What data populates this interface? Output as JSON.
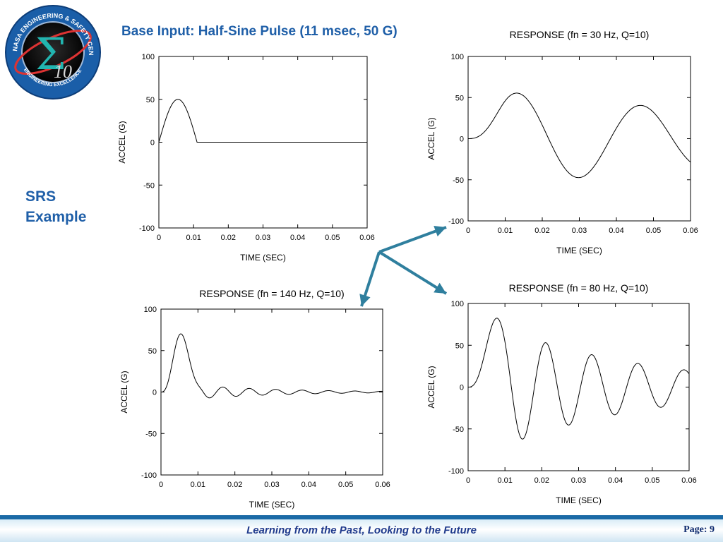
{
  "logo": {
    "ring_top": "NASA ENGINEERING & SAFETY CENTER",
    "ring_bottom": "ENGINEERING EXCELLENCE",
    "mark": "10",
    "symbol": "Σ"
  },
  "slide": {
    "title": "Base Input:  Half-Sine Pulse (11 msec, 50 G)",
    "side_label_line1": "SRS",
    "side_label_line2": "Example",
    "footer": "Learning from the Past, Looking to the Future",
    "page": "Page: 9"
  },
  "colors": {
    "title": "#1f5fa8",
    "arrow": "#2f7f9e",
    "footer_band": "#1b6aa6"
  },
  "chart_data": [
    {
      "type": "line",
      "id": "input",
      "title": "",
      "xlabel": "TIME (SEC)",
      "ylabel": "ACCEL (G)",
      "xlim": [
        0,
        0.06
      ],
      "ylim": [
        -100,
        100
      ],
      "xticks": [
        "0",
        "0.01",
        "0.02",
        "0.03",
        "0.04",
        "0.05",
        "0.06"
      ],
      "yticks": [
        "100",
        "50",
        "0",
        "-50",
        "-100"
      ],
      "series": [
        {
          "pulse_duration": 0.011,
          "peak": 50,
          "x": [
            0,
            0.0055,
            0.011,
            0.06
          ],
          "y": [
            0,
            50,
            0,
            0
          ]
        }
      ]
    },
    {
      "type": "line",
      "id": "fn30",
      "title": "RESPONSE  (fn = 30 Hz, Q=10)",
      "xlabel": "TIME (SEC)",
      "ylabel": "ACCEL (G)",
      "xlim": [
        0,
        0.06
      ],
      "ylim": [
        -100,
        100
      ],
      "xticks": [
        "0",
        "0.01",
        "0.02",
        "0.03",
        "0.04",
        "0.05",
        "0.06"
      ],
      "yticks": [
        "100",
        "50",
        "0",
        "-50",
        "-100"
      ],
      "series": [
        {
          "fn": 30,
          "Q": 10,
          "x": [
            0,
            0.0132,
            0.0297,
            0.0464,
            0.06
          ],
          "y": [
            0,
            55,
            -47,
            40,
            -29
          ]
        }
      ]
    },
    {
      "type": "line",
      "id": "fn140",
      "title": "RESPONSE (fn = 140 Hz, Q=10)",
      "xlabel": "TIME (SEC)",
      "ylabel": "ACCEL (G)",
      "xlim": [
        0,
        0.06
      ],
      "ylim": [
        -100,
        100
      ],
      "xticks": [
        "0",
        "0.01",
        "0.02",
        "0.03",
        "0.04",
        "0.05",
        "0.06"
      ],
      "yticks": [
        "100",
        "50",
        "0",
        "-50",
        "-100"
      ],
      "series": [
        {
          "fn": 140,
          "Q": 10,
          "x": [
            0,
            0.0053,
            0.0124,
            0.0165,
            0.0237,
            0.0594
          ],
          "y": [
            0,
            70,
            -7,
            6,
            5,
            1
          ]
        }
      ]
    },
    {
      "type": "line",
      "id": "fn80",
      "title": "RESPONSE (fn = 80 Hz, Q=10)",
      "xlabel": "TIME (SEC)",
      "ylabel": "ACCEL (G)",
      "xlim": [
        0,
        0.06
      ],
      "ylim": [
        -100,
        100
      ],
      "xticks": [
        "0",
        "0.01",
        "0.02",
        "0.03",
        "0.04",
        "0.05",
        "0.06"
      ],
      "yticks": [
        "100",
        "50",
        "0",
        "-50",
        "-100"
      ],
      "series": [
        {
          "fn": 80,
          "Q": 10,
          "x": [
            0,
            0.0079,
            0.0147,
            0.0203,
            0.0268,
            0.0336,
            0.0398,
            0.046,
            0.0525,
            0.0592
          ],
          "y": [
            0,
            82,
            -63,
            53,
            -45,
            38,
            -32,
            28,
            -24,
            20
          ]
        }
      ]
    }
  ]
}
